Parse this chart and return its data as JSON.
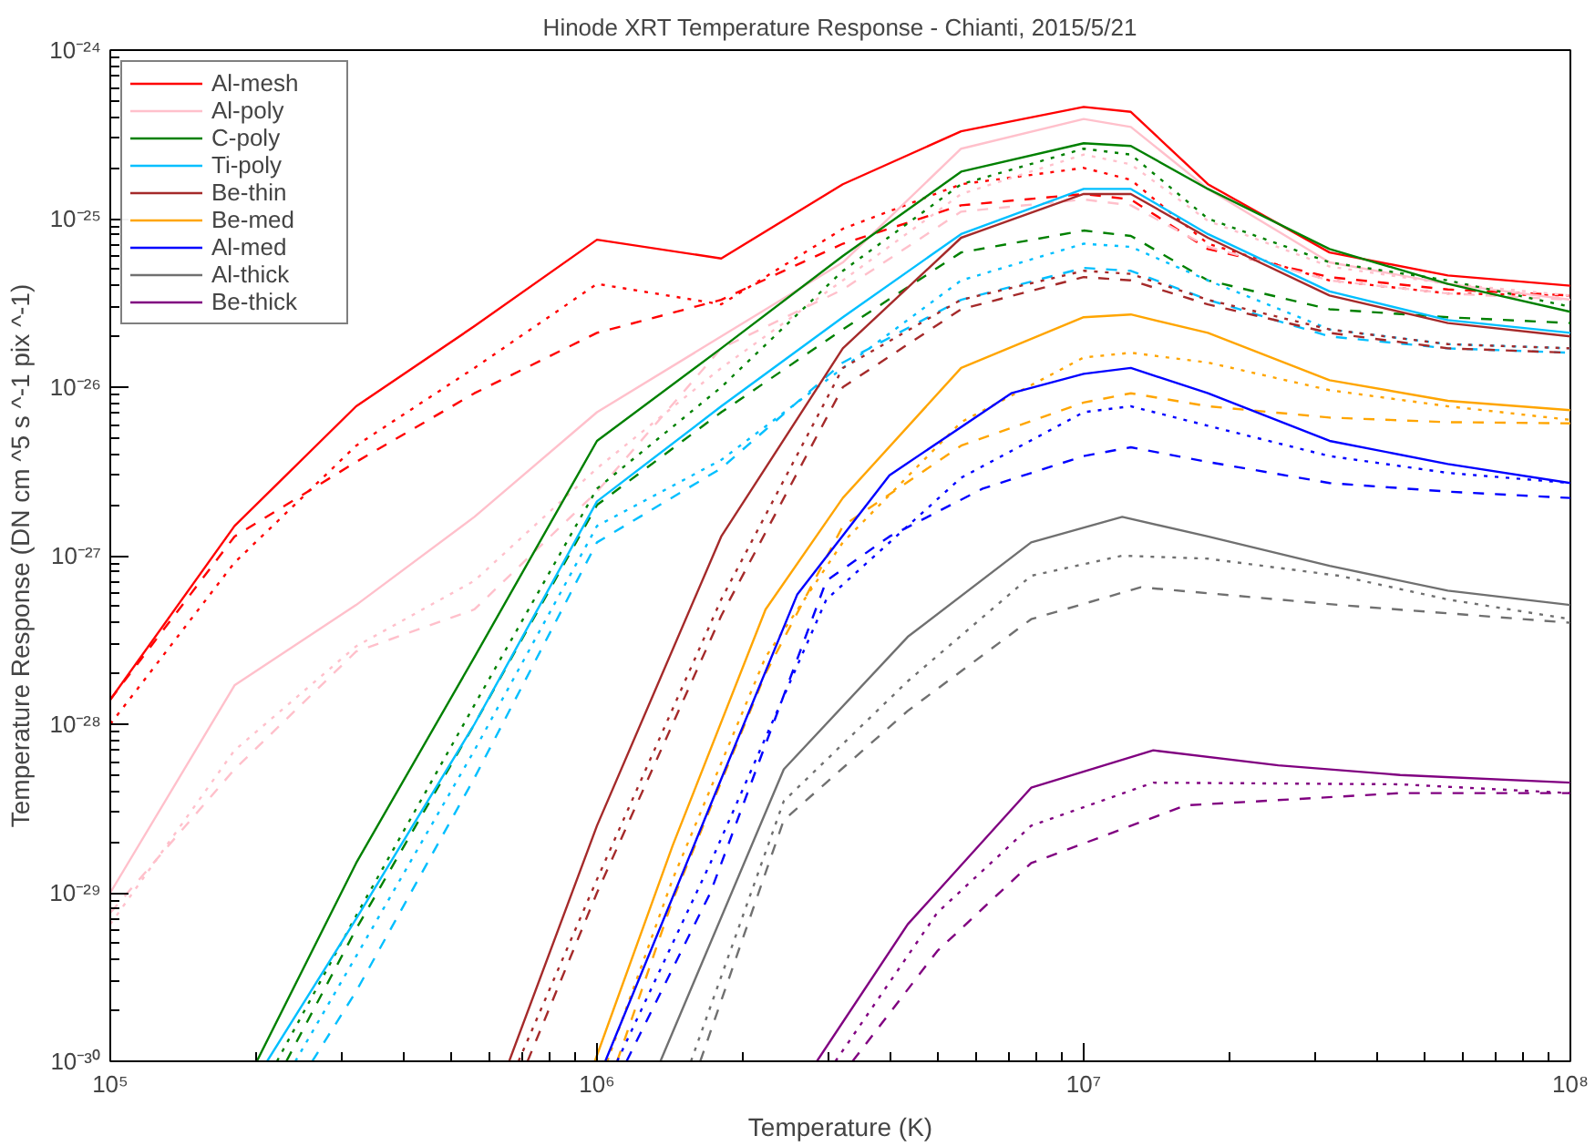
{
  "chart_data": {
    "type": "line",
    "title": "Hinode XRT Temperature Response - Chianti, 2015/5/21",
    "xlabel": "Temperature (K)",
    "ylabel": "Temperature Response (DN cm ^5 s ^-1 pix ^-1)",
    "log": "xy",
    "grid": false,
    "legend": "top left",
    "xlim": [
      100000.0,
      100000000.0
    ],
    "ylim": [
      1e-30,
      1e-24
    ],
    "xticks": [
      {
        "value": 100000.0,
        "label": "10⁵"
      },
      {
        "value": 1000000.0,
        "label": "10⁶"
      },
      {
        "value": 10000000.0,
        "label": "10⁷"
      },
      {
        "value": 100000000.0,
        "label": "10⁸"
      }
    ],
    "yticks": [
      {
        "value": 1e-30,
        "label": "10⁻³⁰"
      },
      {
        "value": 1e-29,
        "label": "10⁻²⁹"
      },
      {
        "value": 1e-28,
        "label": "10⁻²⁸"
      },
      {
        "value": 1e-27,
        "label": "10⁻²⁷"
      },
      {
        "value": 1e-26,
        "label": "10⁻²⁶"
      },
      {
        "value": 1e-25,
        "label": "10⁻²⁵"
      },
      {
        "value": 1e-24,
        "label": "10⁻²⁴"
      }
    ],
    "series": [
      {
        "name": "Al-mesh",
        "color": "#ff0000",
        "line_style": "solid",
        "x": [
          100000.0,
          180000.0,
          320000.0,
          560000.0,
          1000000.0,
          1800000.0,
          3200000.0,
          5600000.0,
          10000000.0,
          12500000.0,
          18000000.0,
          32000000.0,
          56000000.0,
          100000000.0
        ],
        "values": [
          1.4e-28,
          1.5e-27,
          7.7e-27,
          2.3e-26,
          7.5e-26,
          5.8e-26,
          1.6e-25,
          3.3e-25,
          4.6e-25,
          4.3e-25,
          1.6e-25,
          6.3e-26,
          4.6e-26,
          4e-26
        ]
      },
      {
        "color": "#ff0000",
        "line_style": "dotted",
        "x": [
          100000.0,
          180000.0,
          320000.0,
          560000.0,
          1000000.0,
          1800000.0,
          3200000.0,
          5600000.0,
          10000000.0,
          12500000.0,
          18000000.0,
          32000000.0,
          56000000.0,
          100000000.0
        ],
        "values": [
          1e-28,
          9.1e-28,
          4.5e-27,
          1.3e-26,
          4.1e-26,
          3.1e-26,
          8.7e-26,
          1.6e-25,
          2e-25,
          1.7e-25,
          7.1e-26,
          4.3e-26,
          3.6e-26,
          3.5e-26
        ]
      },
      {
        "color": "#ff0000",
        "line_style": "dashed",
        "x": [
          100000.0,
          180000.0,
          320000.0,
          560000.0,
          1000000.0,
          1800000.0,
          3200000.0,
          5600000.0,
          10000000.0,
          12500000.0,
          18000000.0,
          32000000.0,
          56000000.0,
          100000000.0
        ],
        "values": [
          1.4e-28,
          1.3e-27,
          3.6e-27,
          9.2e-27,
          2.1e-26,
          3.3e-26,
          7.1e-26,
          1.2e-25,
          1.4e-25,
          1.3e-25,
          6.6e-26,
          4.5e-26,
          3.8e-26,
          3.5e-26
        ]
      },
      {
        "name": "Al-poly",
        "color": "#ffc0cb",
        "line_style": "solid",
        "x": [
          100000.0,
          180000.0,
          320000.0,
          560000.0,
          1000000.0,
          1800000.0,
          3200000.0,
          5600000.0,
          10000000.0,
          12500000.0,
          18000000.0,
          32000000.0,
          56000000.0,
          100000000.0
        ],
        "values": [
          1e-29,
          1.7e-28,
          5.1e-28,
          1.7e-27,
          7.1e-27,
          2e-26,
          5.5e-26,
          2.6e-25,
          3.9e-25,
          3.5e-25,
          1.5e-25,
          5.5e-26,
          4.1e-26,
          3.3e-26
        ]
      },
      {
        "color": "#ffc0cb",
        "line_style": "dotted",
        "x": [
          100000.0,
          180000.0,
          320000.0,
          560000.0,
          1000000.0,
          1800000.0,
          3200000.0,
          5600000.0,
          10000000.0,
          12500000.0,
          18000000.0,
          32000000.0,
          56000000.0,
          100000000.0
        ],
        "values": [
          6.5e-30,
          7e-29,
          2.9e-28,
          7.1e-28,
          3.3e-27,
          1.3e-26,
          4.3e-26,
          1.4e-25,
          2.4e-25,
          2.1e-25,
          9.7e-26,
          5.2e-26,
          4.1e-26,
          3.5e-26
        ]
      },
      {
        "color": "#ffc0cb",
        "line_style": "dashed",
        "x": [
          100000.0,
          180000.0,
          320000.0,
          560000.0,
          1000000.0,
          1800000.0,
          3200000.0,
          5600000.0,
          10000000.0,
          12500000.0,
          18000000.0,
          32000000.0,
          56000000.0,
          100000000.0
        ],
        "values": [
          7.6e-30,
          5.4e-29,
          2.7e-28,
          4.8e-28,
          2.4e-27,
          1.7e-26,
          3.8e-26,
          1.1e-25,
          1.3e-25,
          1.2e-25,
          6.8e-26,
          4.3e-26,
          3.6e-26,
          3.3e-26
        ]
      },
      {
        "name": "C-poly",
        "color": "#008000",
        "line_style": "solid",
        "x": [
          200000.0,
          320000.0,
          560000.0,
          1000000.0,
          1800000.0,
          3200000.0,
          5600000.0,
          10000000.0,
          12500000.0,
          18000000.0,
          32000000.0,
          56000000.0,
          100000000.0
        ],
        "values": [
          1e-30,
          1.5e-29,
          2.5e-28,
          4.8e-27,
          1.7e-26,
          6e-26,
          1.9e-25,
          2.8e-25,
          2.7e-25,
          1.5e-25,
          6.6e-26,
          4.1e-26,
          2.8e-26
        ]
      },
      {
        "color": "#008000",
        "line_style": "dotted",
        "x": [
          220000.0,
          320000.0,
          560000.0,
          1000000.0,
          1800000.0,
          3200000.0,
          5600000.0,
          10000000.0,
          12500000.0,
          18000000.0,
          32000000.0,
          56000000.0,
          100000000.0
        ],
        "values": [
          1e-30,
          7.3e-30,
          1.3e-28,
          2.5e-27,
          1e-26,
          4.9e-26,
          1.6e-25,
          2.6e-25,
          2.4e-25,
          1e-25,
          5.5e-26,
          4.3e-26,
          3e-26
        ]
      },
      {
        "color": "#008000",
        "line_style": "dashed",
        "x": [
          230000.0,
          320000.0,
          560000.0,
          1000000.0,
          1800000.0,
          3200000.0,
          5600000.0,
          10000000.0,
          12500000.0,
          18000000.0,
          32000000.0,
          56000000.0,
          100000000.0
        ],
        "values": [
          1e-30,
          6.1e-30,
          1e-28,
          2e-27,
          7.1e-27,
          2.2e-26,
          6.3e-26,
          8.5e-26,
          7.9e-26,
          4.3e-26,
          2.9e-26,
          2.6e-26,
          2.4e-26
        ]
      },
      {
        "name": "Ti-poly",
        "color": "#00bfff",
        "line_style": "solid",
        "x": [
          210000.0,
          320000.0,
          560000.0,
          1000000.0,
          1800000.0,
          3200000.0,
          5600000.0,
          10000000.0,
          12500000.0,
          18000000.0,
          32000000.0,
          56000000.0,
          100000000.0
        ],
        "values": [
          1e-30,
          7e-30,
          1e-28,
          2.1e-27,
          7.7e-27,
          2.6e-26,
          8.1e-26,
          1.5e-25,
          1.5e-25,
          8.1e-26,
          3.7e-26,
          2.5e-26,
          2.1e-26
        ]
      },
      {
        "color": "#00bfff",
        "line_style": "dotted",
        "x": [
          240000.0,
          320000.0,
          560000.0,
          1000000.0,
          1800000.0,
          3200000.0,
          5600000.0,
          10000000.0,
          12500000.0,
          18000000.0,
          32000000.0,
          56000000.0,
          100000000.0
        ],
        "values": [
          1e-30,
          4.2e-30,
          7e-29,
          1.5e-27,
          3.7e-27,
          1.3e-26,
          4.3e-26,
          7.1e-26,
          6.8e-26,
          4.3e-26,
          2.2e-26,
          1.8e-26,
          1.7e-26
        ]
      },
      {
        "color": "#00bfff",
        "line_style": "dashed",
        "x": [
          260000.0,
          320000.0,
          560000.0,
          1000000.0,
          1800000.0,
          3200000.0,
          5600000.0,
          10000000.0,
          12500000.0,
          18000000.0,
          32000000.0,
          56000000.0,
          100000000.0
        ],
        "values": [
          1e-30,
          2.6e-30,
          4.8e-29,
          1.2e-27,
          3.3e-27,
          1.4e-26,
          3.3e-26,
          5.1e-26,
          4.9e-26,
          3.3e-26,
          2e-26,
          1.7e-26,
          1.6e-26
        ]
      },
      {
        "name": "Be-thin",
        "color": "#a52a2a",
        "line_style": "solid",
        "x": [
          660000.0,
          1000000.0,
          1800000.0,
          3200000.0,
          5600000.0,
          10000000.0,
          12500000.0,
          18000000.0,
          32000000.0,
          56000000.0,
          100000000.0
        ],
        "values": [
          1e-30,
          2.5e-29,
          1.3e-27,
          1.7e-26,
          7.7e-26,
          1.4e-25,
          1.4e-25,
          7.7e-26,
          3.5e-26,
          2.4e-26,
          2e-26
        ]
      },
      {
        "color": "#a52a2a",
        "line_style": "dotted",
        "x": [
          690000.0,
          1000000.0,
          1800000.0,
          3200000.0,
          5600000.0,
          10000000.0,
          12500000.0,
          18000000.0,
          32000000.0,
          56000000.0,
          100000000.0
        ],
        "values": [
          1e-30,
          1.2e-29,
          5.5e-28,
          1.3e-26,
          3.3e-26,
          4.9e-26,
          4.7e-26,
          3.3e-26,
          2.2e-26,
          1.8e-26,
          1.7e-26
        ]
      },
      {
        "color": "#a52a2a",
        "line_style": "dashed",
        "x": [
          720000.0,
          1000000.0,
          1800000.0,
          3200000.0,
          5600000.0,
          10000000.0,
          12500000.0,
          18000000.0,
          32000000.0,
          56000000.0,
          100000000.0
        ],
        "values": [
          1e-30,
          1e-29,
          4.4e-28,
          1e-26,
          2.9e-26,
          4.5e-26,
          4.3e-26,
          3.1e-26,
          2.1e-26,
          1.7e-26,
          1.6e-26
        ]
      },
      {
        "name": "Be-med",
        "color": "#ffa500",
        "line_style": "solid",
        "x": [
          990000.0,
          1430000.0,
          2220000.0,
          3200000.0,
          5600000.0,
          10000000.0,
          12500000.0,
          18000000.0,
          32000000.0,
          56000000.0,
          100000000.0
        ],
        "values": [
          1e-30,
          1.9e-29,
          4.8e-28,
          2.2e-27,
          1.3e-26,
          2.6e-26,
          2.7e-26,
          2.1e-26,
          1.1e-26,
          8.3e-27,
          7.3e-27
        ]
      },
      {
        "color": "#ffa500",
        "line_style": "dotted",
        "x": [
          1050000.0,
          1430000.0,
          2220000.0,
          3200000.0,
          5600000.0,
          10000000.0,
          12500000.0,
          18000000.0,
          32000000.0,
          56000000.0,
          100000000.0
        ],
        "values": [
          1e-30,
          1.2e-29,
          2.5e-28,
          1.2e-27,
          6.2e-27,
          1.5e-26,
          1.6e-26,
          1.4e-26,
          9.6e-27,
          7.7e-27,
          6.4e-27
        ]
      },
      {
        "color": "#ffa500",
        "line_style": "dashed",
        "x": [
          1100000.0,
          1430000.0,
          2220000.0,
          3200000.0,
          5600000.0,
          10000000.0,
          12500000.0,
          18000000.0,
          32000000.0,
          56000000.0,
          100000000.0
        ],
        "values": [
          1e-30,
          9e-30,
          2e-28,
          1.5e-27,
          4.5e-27,
          8.1e-27,
          9.2e-27,
          7.7e-27,
          6.6e-27,
          6.2e-27,
          6.1e-27
        ]
      },
      {
        "name": "Al-med",
        "color": "#0000ff",
        "line_style": "solid",
        "x": [
          1040000.0,
          1710000.0,
          2580000.0,
          3990000.0,
          7100000.0,
          10000000.0,
          12500000.0,
          18000000.0,
          32000000.0,
          56000000.0,
          100000000.0
        ],
        "values": [
          1e-30,
          3.3e-29,
          5.9e-28,
          3e-27,
          9.2e-27,
          1.2e-26,
          1.3e-26,
          9.2e-27,
          4.8e-27,
          3.5e-27,
          2.7e-27
        ]
      },
      {
        "color": "#0000ff",
        "line_style": "dotted",
        "x": [
          1100000.0,
          1710000.0,
          2960000.0,
          5600000.0,
          10000000.0,
          12500000.0,
          18000000.0,
          32000000.0,
          56000000.0,
          100000000.0
        ],
        "values": [
          1e-30,
          1.5e-29,
          5.5e-28,
          2.9e-27,
          7.1e-27,
          7.7e-27,
          5.9e-27,
          3.9e-27,
          3.1e-27,
          2.7e-27
        ]
      },
      {
        "color": "#0000ff",
        "line_style": "dashed",
        "x": [
          1150000.0,
          1710000.0,
          2960000.0,
          3990000.0,
          6200000.0,
          10000000.0,
          12500000.0,
          18000000.0,
          32000000.0,
          56000000.0,
          100000000.0
        ],
        "values": [
          1e-30,
          1e-29,
          7.1e-28,
          1.3e-27,
          2.5e-27,
          3.9e-27,
          4.4e-27,
          3.6e-27,
          2.7e-27,
          2.4e-27,
          2.2e-27
        ]
      },
      {
        "name": "Al-thick",
        "color": "#707070",
        "line_style": "solid",
        "x": [
          1350000.0,
          2420000.0,
          4350000.0,
          7800000.0,
          12000000.0,
          18000000.0,
          32000000.0,
          56000000.0,
          100000000.0
        ],
        "values": [
          1e-30,
          5.4e-29,
          3.3e-28,
          1.2e-27,
          1.7e-27,
          1.3e-27,
          8.7e-28,
          6.2e-28,
          5.1e-28
        ]
      },
      {
        "color": "#707070",
        "line_style": "dotted",
        "x": [
          1560000.0,
          2420000.0,
          4350000.0,
          7800000.0,
          12000000.0,
          18000000.0,
          33500000.0,
          56000000.0,
          100000000.0
        ],
        "values": [
          1e-30,
          3.5e-29,
          1.8e-28,
          7.6e-28,
          1e-27,
          9.6e-28,
          7.6e-28,
          5.5e-28,
          4.2e-28
        ]
      },
      {
        "color": "#707070",
        "line_style": "dashed",
        "x": [
          1630000.0,
          2420000.0,
          4350000.0,
          7800000.0,
          13100000.0,
          33500000.0,
          100000000.0
        ],
        "values": [
          1e-30,
          2.7e-29,
          1.2e-28,
          4.2e-28,
          6.5e-28,
          5.1e-28,
          4e-28
        ]
      },
      {
        "name": "Be-thick",
        "color": "#800080",
        "line_style": "solid",
        "x": [
          2830000.0,
          4350000.0,
          7800000.0,
          13900000.0,
          25100000.0,
          44700000.0,
          100000000.0
        ],
        "values": [
          1e-30,
          6.5e-30,
          4.2e-29,
          7e-29,
          5.7e-29,
          5e-29,
          4.5e-29
        ]
      },
      {
        "color": "#800080",
        "line_style": "dotted",
        "x": [
          3090000.0,
          5000000.0,
          7800000.0,
          13900000.0,
          44700000.0,
          100000000.0
        ],
        "values": [
          1e-30,
          7.6e-30,
          2.5e-29,
          4.5e-29,
          4.4e-29,
          3.9e-29
        ]
      },
      {
        "color": "#800080",
        "line_style": "dashed",
        "x": [
          3350000.0,
          5000000.0,
          7800000.0,
          16200000.0,
          44700000.0,
          100000000.0
        ],
        "values": [
          1e-30,
          4.5e-30,
          1.5e-29,
          3.3e-29,
          3.9e-29,
          3.9e-29
        ]
      }
    ]
  }
}
